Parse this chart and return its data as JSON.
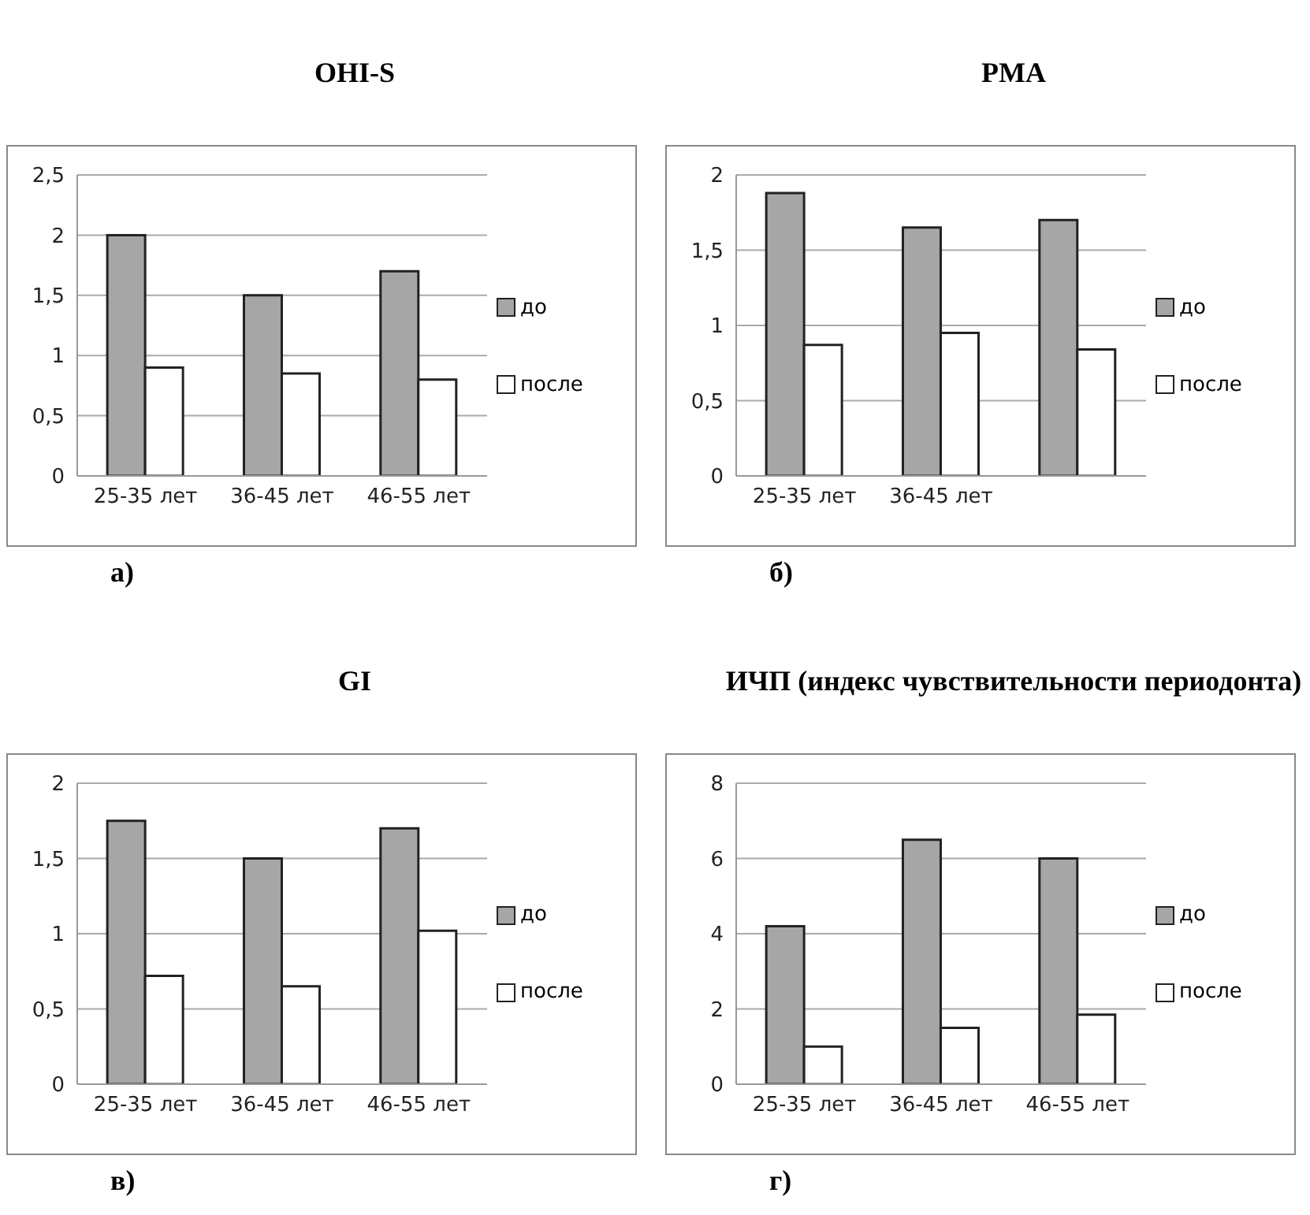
{
  "chart_data": [
    {
      "type": "bar",
      "title": "OHI-S",
      "categories": [
        "25-35 лет",
        "36-45 лет",
        "46-55 лет"
      ],
      "series": [
        {
          "name": "до",
          "color": "#a6a6a6",
          "values": [
            2.0,
            1.5,
            1.7
          ]
        },
        {
          "name": "после",
          "color": "#ffffff",
          "values": [
            0.9,
            0.85,
            0.8
          ]
        }
      ],
      "ylim": [
        0,
        2.5
      ],
      "yticks": [
        0,
        {
          "value": 0.5,
          "label": "0,5"
        },
        1,
        {
          "value": 1.5,
          "label": "1,5"
        },
        2,
        {
          "value": 2.5,
          "label": "2,5"
        }
      ],
      "grid": "y",
      "legend": "right",
      "annotations": [
        "а)"
      ]
    },
    {
      "type": "bar",
      "title": "PMA",
      "categories": [
        "25-35 лет",
        "36-45 лет",
        null
      ],
      "series": [
        {
          "name": "до",
          "color": "#a6a6a6",
          "values": [
            1.88,
            1.65,
            1.7
          ]
        },
        {
          "name": "после",
          "color": "#ffffff",
          "values": [
            0.87,
            0.95,
            0.84
          ]
        }
      ],
      "ylim": [
        0,
        2
      ],
      "yticks": [
        0,
        {
          "value": 0.5,
          "label": "0,5"
        },
        1,
        {
          "value": 1.5,
          "label": "1,5"
        },
        2
      ],
      "grid": "y",
      "legend": "right",
      "annotations": [
        "б)"
      ]
    },
    {
      "type": "bar",
      "title": "GI",
      "categories": [
        "25-35 лет",
        "36-45 лет",
        "46-55 лет"
      ],
      "series": [
        {
          "name": "до",
          "color": "#a6a6a6",
          "values": [
            1.75,
            1.5,
            1.7
          ]
        },
        {
          "name": "после",
          "color": "#ffffff",
          "values": [
            0.72,
            0.65,
            1.02
          ]
        }
      ],
      "ylim": [
        0,
        2
      ],
      "yticks": [
        0,
        {
          "value": 0.5,
          "label": "0,5"
        },
        1,
        {
          "value": 1.5,
          "label": "1,5"
        },
        2
      ],
      "grid": "y",
      "legend": "right",
      "annotations": [
        "в)"
      ]
    },
    {
      "type": "bar",
      "title": "ИЧП (индекс чувствительности периодонта)",
      "categories": [
        "25-35 лет",
        "36-45 лет",
        "46-55 лет"
      ],
      "series": [
        {
          "name": "до",
          "color": "#a6a6a6",
          "values": [
            4.2,
            6.5,
            6.0
          ]
        },
        {
          "name": "после",
          "color": "#ffffff",
          "values": [
            1.0,
            1.5,
            1.85
          ]
        }
      ],
      "ylim": [
        0,
        8
      ],
      "yticks": [
        0,
        2,
        4,
        6,
        8
      ],
      "grid": "y",
      "legend": "right",
      "annotations": [
        "г)"
      ]
    }
  ]
}
